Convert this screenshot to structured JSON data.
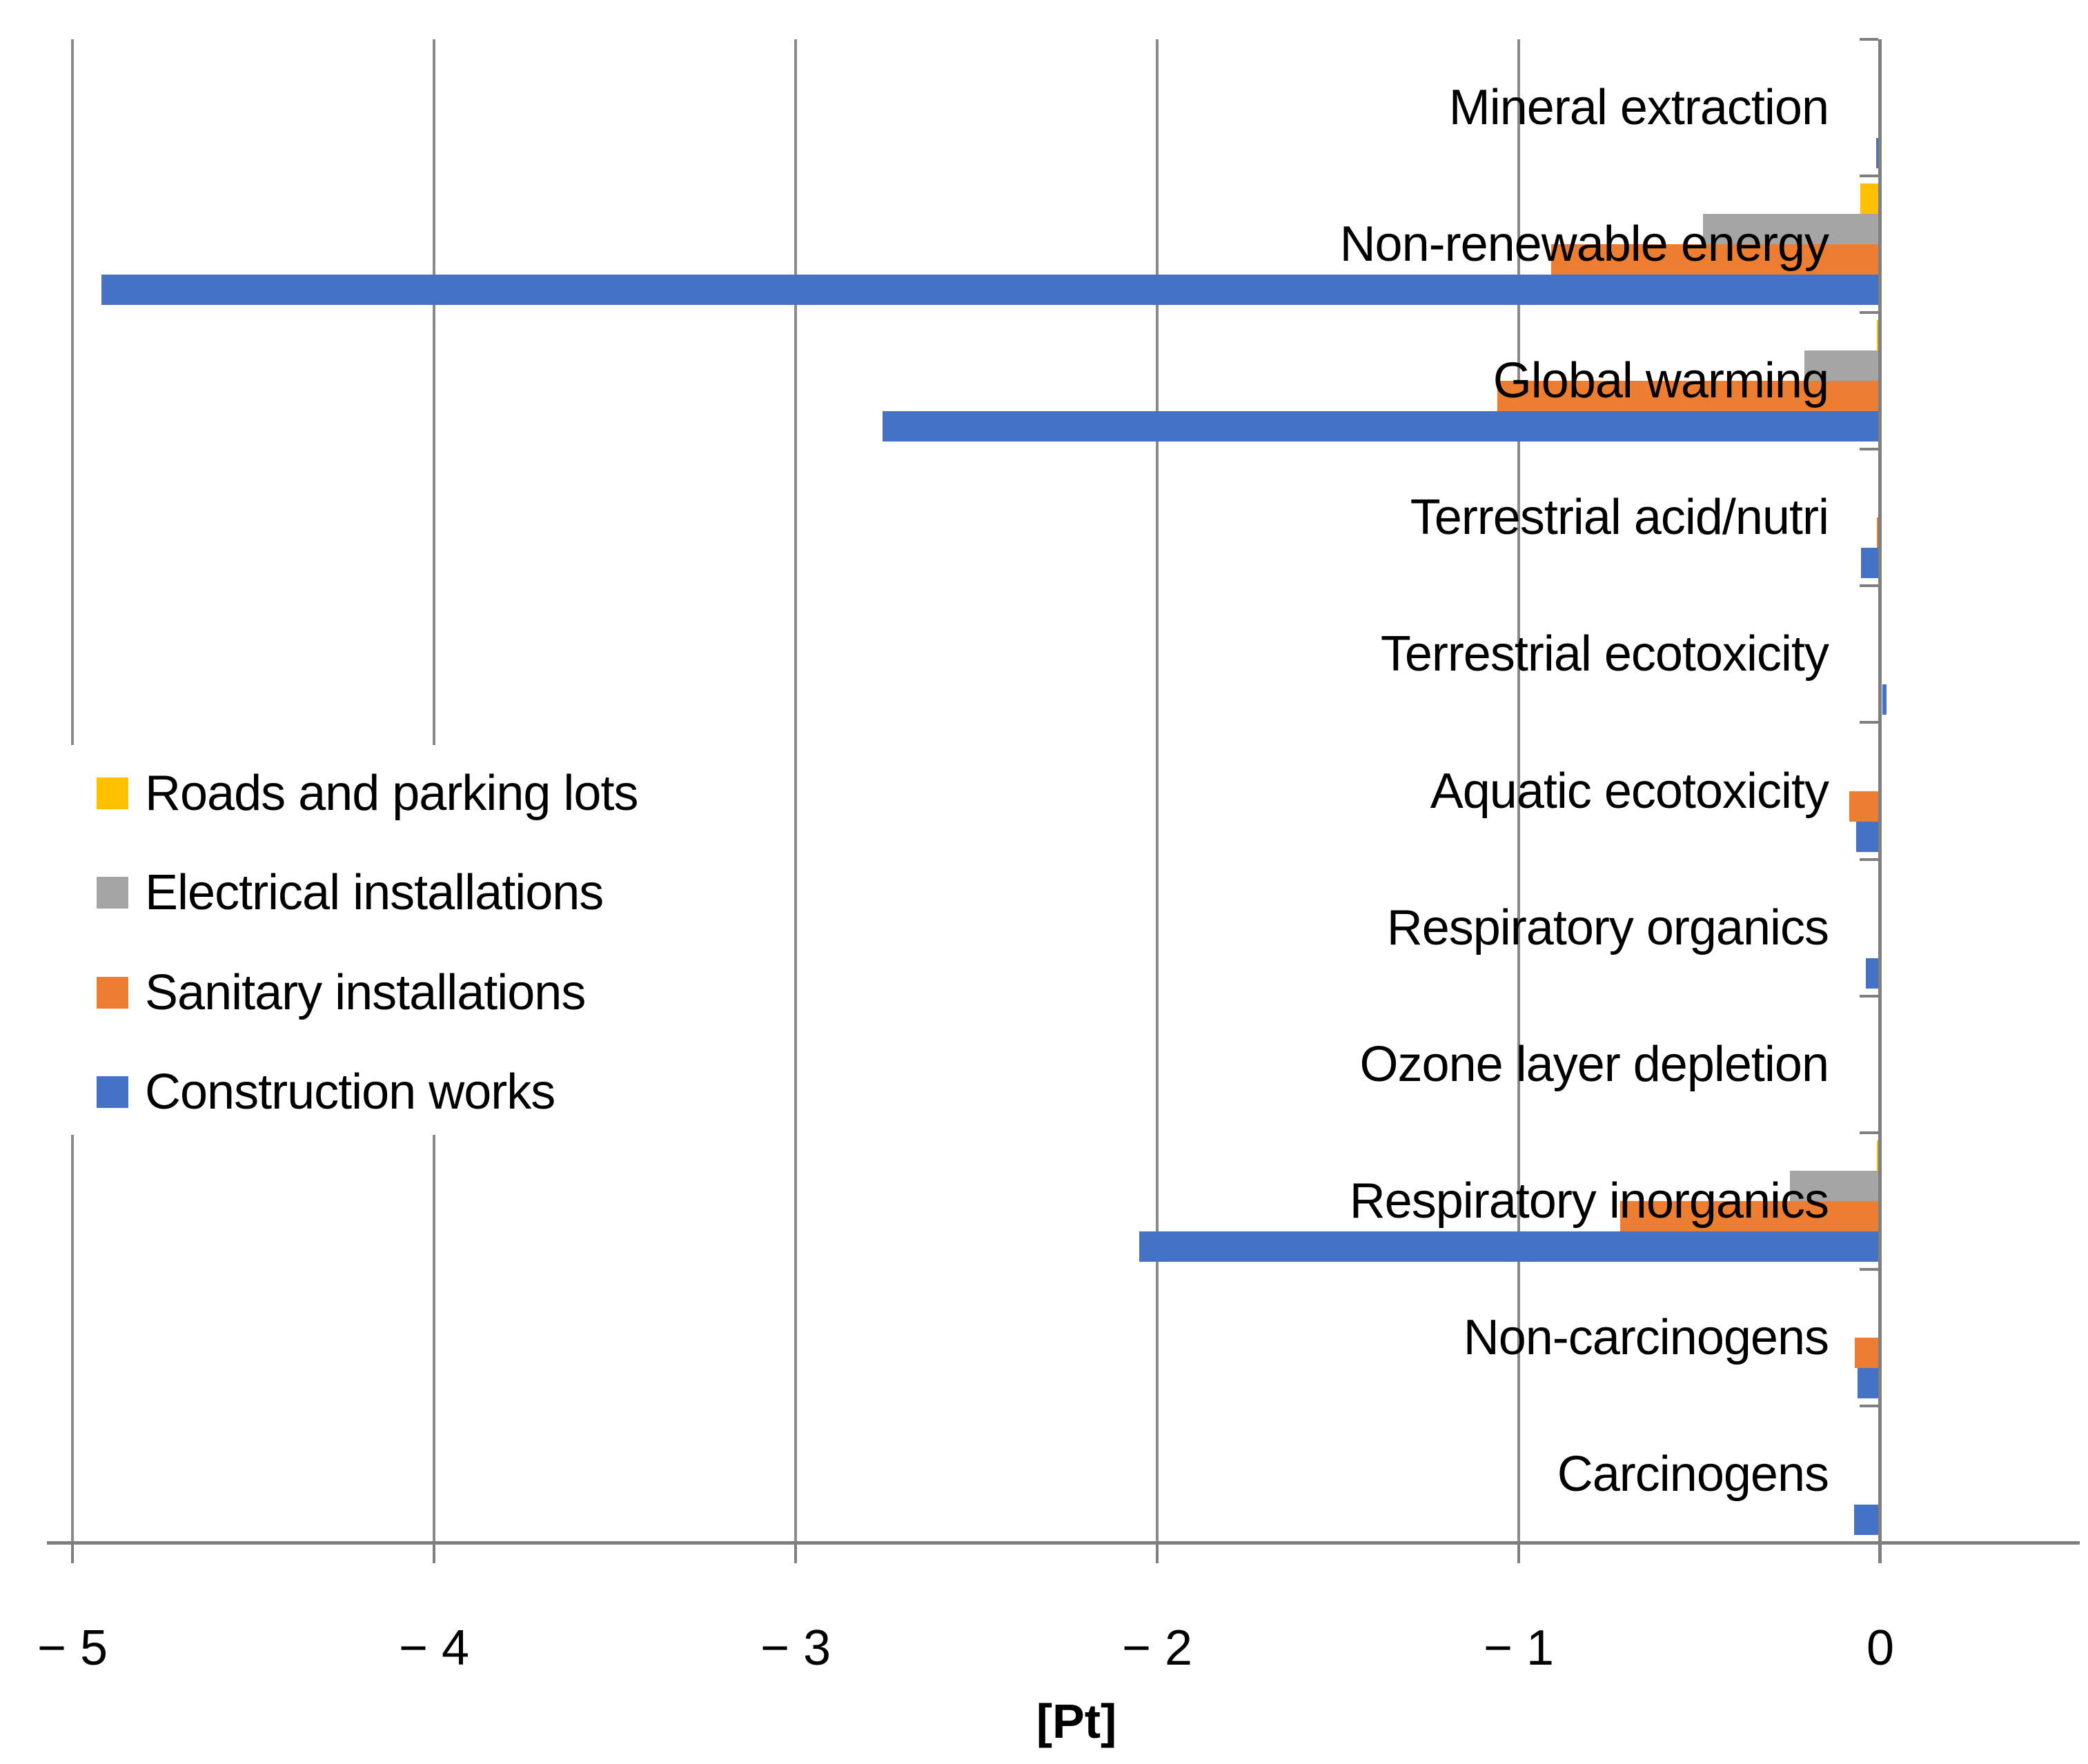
{
  "chart_data": {
    "type": "bar",
    "orientation": "horizontal",
    "title": "",
    "xlabel": "[Pt]",
    "ylabel": "",
    "xlim": [
      -5,
      0.57
    ],
    "grid": true,
    "legend_position": "center-left",
    "x_tick_values": [
      -5,
      -4,
      -3,
      -2,
      -1,
      0
    ],
    "x_tick_labels": [
      "− 5",
      "− 4",
      "− 3",
      "− 2",
      "− 1",
      "0"
    ],
    "categories": [
      "Mineral extraction",
      "Non-renewable energy",
      "Global warming",
      "Terrestrial acid/nutri",
      "Terrestrial ecotoxicity",
      "Aquatic ecotoxicity",
      "Respiratory organics",
      "Ozone layer depletion",
      "Respiratory inorganics",
      "Non-carcinogens",
      "Carcinogens"
    ],
    "series": [
      {
        "name": "Roads and parking lots",
        "color": "#FFC000",
        "values": [
          0,
          -0.055,
          -0.01,
          0,
          0,
          0,
          0,
          0,
          -0.01,
          0,
          0
        ]
      },
      {
        "name": "Electrical installations",
        "color": "#A5A5A5",
        "values": [
          0,
          -0.49,
          -0.21,
          0,
          0,
          0,
          0,
          0,
          -0.25,
          0,
          0
        ]
      },
      {
        "name": "Sanitary installations",
        "color": "#ED7D31",
        "values": [
          -0.005,
          -0.91,
          -1.06,
          -0.01,
          0,
          -0.086,
          -0.004,
          0,
          -0.72,
          -0.07,
          0
        ]
      },
      {
        "name": "Construction works",
        "color": "#4472C4",
        "values": [
          -0.012,
          -4.92,
          -2.76,
          -0.053,
          0.011,
          -0.067,
          -0.04,
          0,
          -2.05,
          -0.063,
          -0.073
        ]
      }
    ],
    "colors": {
      "gridline": "#8a8a8a",
      "axis": "#7f7f7f",
      "text": "#000000",
      "background": "#ffffff"
    }
  }
}
